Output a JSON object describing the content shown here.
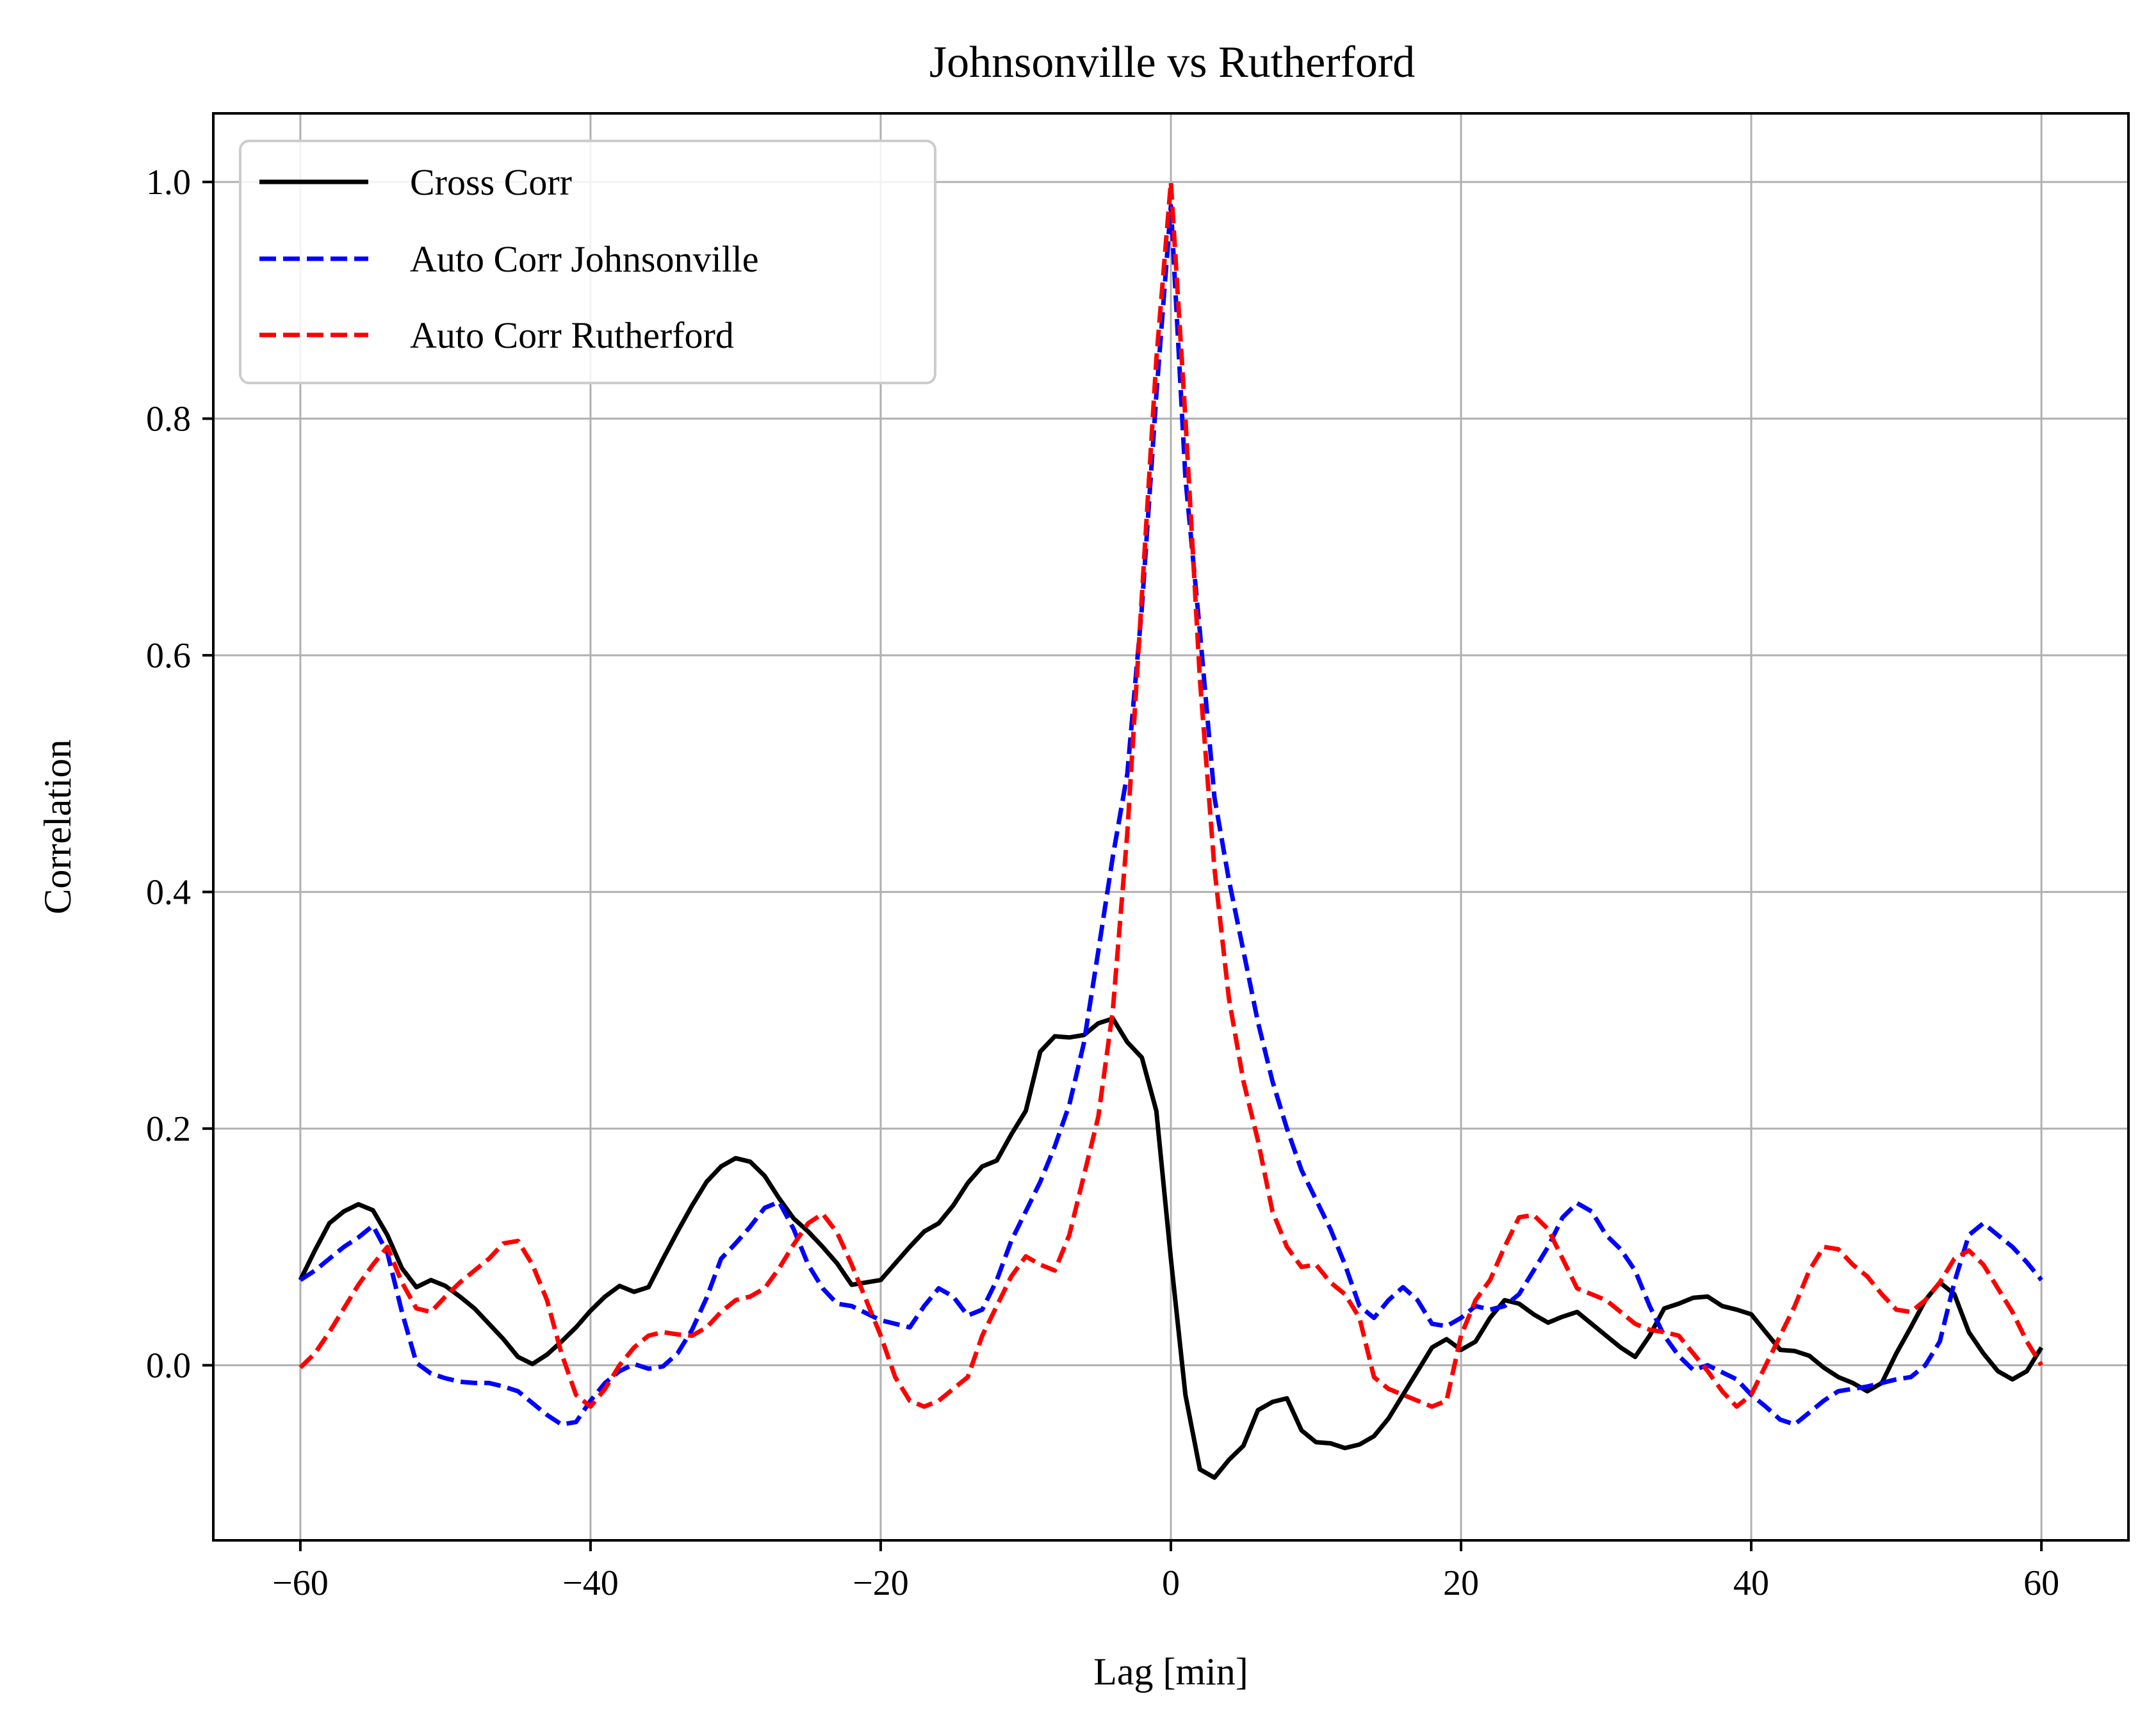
{
  "chart_data": {
    "type": "line",
    "title": "Johnsonville vs Rutherford",
    "xlabel": "Lag [min]",
    "ylabel": "Correlation",
    "xlim": [
      -66,
      66
    ],
    "ylim": [
      -0.148,
      1.058
    ],
    "xticks": [
      -60,
      -40,
      -20,
      0,
      20,
      40,
      60
    ],
    "xtick_labels": [
      "−60",
      "−40",
      "−20",
      "0",
      "20",
      "40",
      "60"
    ],
    "yticks": [
      0.0,
      0.2,
      0.4,
      0.6,
      0.8,
      1.0
    ],
    "ytick_labels": [
      "0.0",
      "0.2",
      "0.4",
      "0.6",
      "0.8",
      "1.0"
    ],
    "grid": true,
    "legend_position": "top-left",
    "series": [
      {
        "name": "Cross Corr",
        "color": "#000000",
        "style": "solid",
        "x": [
          -60,
          -59,
          -58,
          -57,
          -56,
          -55,
          -54,
          -53,
          -52,
          -51,
          -50,
          -49,
          -48,
          -47,
          -46,
          -45,
          -44,
          -43,
          -42,
          -41,
          -40,
          -39,
          -38,
          -37,
          -36,
          -35,
          -34,
          -33,
          -32,
          -31,
          -30,
          -29,
          -28,
          -27,
          -26,
          -25,
          -24,
          -23,
          -22,
          -21,
          -20,
          -19,
          -18,
          -17,
          -16,
          -15,
          -14,
          -13,
          -12,
          -11,
          -10,
          -9,
          -8,
          -7,
          -6,
          -5,
          -4,
          -3,
          -2,
          -1,
          0,
          1,
          2,
          3,
          4,
          5,
          6,
          7,
          8,
          9,
          10,
          11,
          12,
          13,
          14,
          15,
          16,
          17,
          18,
          19,
          20,
          21,
          22,
          23,
          24,
          25,
          26,
          27,
          28,
          29,
          30,
          31,
          32,
          33,
          34,
          35,
          36,
          37,
          38,
          39,
          40,
          41,
          42,
          43,
          44,
          45,
          46,
          47,
          48,
          49,
          50,
          51,
          52,
          53,
          54,
          55,
          56,
          57,
          58,
          59,
          60
        ],
        "y": [
          0.072,
          0.097,
          0.12,
          0.13,
          0.136,
          0.131,
          0.11,
          0.082,
          0.066,
          0.072,
          0.067,
          0.058,
          0.048,
          0.035,
          0.022,
          0.007,
          0.001,
          0.009,
          0.02,
          0.032,
          0.046,
          0.058,
          0.067,
          0.062,
          0.066,
          0.09,
          0.113,
          0.135,
          0.155,
          0.168,
          0.175,
          0.172,
          0.16,
          0.141,
          0.124,
          0.113,
          0.1,
          0.086,
          0.068,
          0.07,
          0.072,
          0.086,
          0.1,
          0.113,
          0.12,
          0.135,
          0.154,
          0.168,
          0.173,
          0.195,
          0.215,
          0.265,
          0.278,
          0.277,
          0.279,
          0.289,
          0.293,
          0.273,
          0.26,
          0.215,
          0.09,
          -0.025,
          -0.088,
          -0.095,
          -0.08,
          -0.068,
          -0.038,
          -0.031,
          -0.028,
          -0.055,
          -0.065,
          -0.066,
          -0.07,
          -0.067,
          -0.06,
          -0.045,
          -0.025,
          -0.005,
          0.015,
          0.022,
          0.013,
          0.02,
          0.04,
          0.055,
          0.052,
          0.043,
          0.036,
          0.041,
          0.045,
          0.035,
          0.025,
          0.015,
          0.007,
          0.025,
          0.048,
          0.052,
          0.057,
          0.058,
          0.05,
          0.047,
          0.043,
          0.028,
          0.013,
          0.012,
          0.008,
          -0.002,
          -0.01,
          -0.015,
          -0.022,
          -0.015,
          0.01,
          0.032,
          0.055,
          0.07,
          0.06,
          0.028,
          0.01,
          -0.005,
          -0.012,
          -0.005,
          0.015
        ]
      },
      {
        "name": "Auto Corr Johnsonville",
        "color": "#0000ff",
        "style": "dashed",
        "x": [
          -60,
          -59,
          -58,
          -57,
          -56,
          -55,
          -54,
          -53,
          -52,
          -51,
          -50,
          -49,
          -48,
          -47,
          -46,
          -45,
          -44,
          -43,
          -42,
          -41,
          -40,
          -39,
          -38,
          -37,
          -36,
          -35,
          -34,
          -33,
          -32,
          -31,
          -30,
          -29,
          -28,
          -27,
          -26,
          -25,
          -24,
          -23,
          -22,
          -21,
          -20,
          -19,
          -18,
          -17,
          -16,
          -15,
          -14,
          -13,
          -12,
          -11,
          -10,
          -9,
          -8,
          -7,
          -6,
          -5,
          -4,
          -3,
          -2,
          -1,
          0,
          1,
          2,
          3,
          4,
          5,
          6,
          7,
          8,
          9,
          10,
          11,
          12,
          13,
          14,
          15,
          16,
          17,
          18,
          19,
          20,
          21,
          22,
          23,
          24,
          25,
          26,
          27,
          28,
          29,
          30,
          31,
          32,
          33,
          34,
          35,
          36,
          37,
          38,
          39,
          40,
          41,
          42,
          43,
          44,
          45,
          46,
          47,
          48,
          49,
          50,
          51,
          52,
          53,
          54,
          55,
          56,
          57,
          58,
          59,
          60
        ],
        "y": [
          0.072,
          0.08,
          0.09,
          0.1,
          0.108,
          0.118,
          0.095,
          0.045,
          0.002,
          -0.007,
          -0.011,
          -0.014,
          -0.015,
          -0.015,
          -0.018,
          -0.022,
          -0.032,
          -0.042,
          -0.05,
          -0.048,
          -0.03,
          -0.015,
          -0.005,
          0.001,
          -0.003,
          -0.001,
          0.01,
          0.03,
          0.057,
          0.09,
          0.103,
          0.117,
          0.133,
          0.138,
          0.115,
          0.085,
          0.065,
          0.052,
          0.05,
          0.044,
          0.038,
          0.035,
          0.032,
          0.05,
          0.065,
          0.058,
          0.042,
          0.047,
          0.072,
          0.105,
          0.13,
          0.155,
          0.185,
          0.22,
          0.272,
          0.35,
          0.43,
          0.5,
          0.64,
          0.82,
          0.98,
          0.75,
          0.62,
          0.48,
          0.41,
          0.35,
          0.29,
          0.24,
          0.2,
          0.165,
          0.14,
          0.115,
          0.085,
          0.05,
          0.04,
          0.055,
          0.066,
          0.055,
          0.035,
          0.033,
          0.04,
          0.05,
          0.047,
          0.05,
          0.06,
          0.08,
          0.1,
          0.125,
          0.137,
          0.13,
          0.11,
          0.098,
          0.08,
          0.05,
          0.025,
          0.008,
          -0.004,
          0.0,
          -0.006,
          -0.012,
          -0.025,
          -0.035,
          -0.046,
          -0.05,
          -0.04,
          -0.03,
          -0.022,
          -0.02,
          -0.018,
          -0.015,
          -0.012,
          -0.01,
          0.0,
          0.02,
          0.07,
          0.11,
          0.12,
          0.11,
          0.1,
          0.087,
          0.072
        ]
      },
      {
        "name": "Auto Corr Rutherford",
        "color": "#ff0000",
        "style": "dashed",
        "x": [
          -60,
          -59,
          -58,
          -57,
          -56,
          -55,
          -54,
          -53,
          -52,
          -51,
          -50,
          -49,
          -48,
          -47,
          -46,
          -45,
          -44,
          -43,
          -42,
          -41,
          -40,
          -39,
          -38,
          -37,
          -36,
          -35,
          -34,
          -33,
          -32,
          -31,
          -30,
          -29,
          -28,
          -27,
          -26,
          -25,
          -24,
          -23,
          -22,
          -21,
          -20,
          -19,
          -18,
          -17,
          -16,
          -15,
          -14,
          -13,
          -12,
          -11,
          -10,
          -9,
          -8,
          -7,
          -6,
          -5,
          -4,
          -3,
          -2,
          -1,
          0,
          1,
          2,
          3,
          4,
          5,
          6,
          7,
          8,
          9,
          10,
          11,
          12,
          13,
          14,
          15,
          16,
          17,
          18,
          19,
          20,
          21,
          22,
          23,
          24,
          25,
          26,
          27,
          28,
          29,
          30,
          31,
          32,
          33,
          34,
          35,
          36,
          37,
          38,
          39,
          40,
          41,
          42,
          43,
          44,
          45,
          46,
          47,
          48,
          49,
          50,
          51,
          52,
          53,
          54,
          55,
          56,
          57,
          58,
          59,
          60
        ],
        "y": [
          -0.002,
          0.01,
          0.028,
          0.048,
          0.068,
          0.085,
          0.1,
          0.07,
          0.048,
          0.045,
          0.058,
          0.07,
          0.08,
          0.09,
          0.103,
          0.105,
          0.085,
          0.055,
          0.01,
          -0.025,
          -0.035,
          -0.02,
          0.0,
          0.015,
          0.025,
          0.028,
          0.026,
          0.025,
          0.032,
          0.045,
          0.055,
          0.058,
          0.065,
          0.082,
          0.102,
          0.12,
          0.128,
          0.112,
          0.085,
          0.055,
          0.025,
          -0.01,
          -0.03,
          -0.035,
          -0.03,
          -0.02,
          -0.01,
          0.025,
          0.05,
          0.075,
          0.092,
          0.085,
          0.08,
          0.11,
          0.16,
          0.21,
          0.3,
          0.45,
          0.65,
          0.85,
          1.0,
          0.8,
          0.58,
          0.42,
          0.31,
          0.24,
          0.19,
          0.13,
          0.1,
          0.083,
          0.085,
          0.07,
          0.06,
          0.04,
          -0.01,
          -0.02,
          -0.025,
          -0.03,
          -0.035,
          -0.03,
          0.025,
          0.055,
          0.072,
          0.1,
          0.125,
          0.127,
          0.115,
          0.09,
          0.065,
          0.06,
          0.055,
          0.045,
          0.035,
          0.03,
          0.028,
          0.025,
          0.01,
          -0.005,
          -0.022,
          -0.035,
          -0.025,
          0.0,
          0.025,
          0.05,
          0.08,
          0.1,
          0.098,
          0.085,
          0.075,
          0.06,
          0.047,
          0.045,
          0.055,
          0.07,
          0.09,
          0.097,
          0.085,
          0.065,
          0.045,
          0.02,
          0.0
        ]
      }
    ]
  }
}
